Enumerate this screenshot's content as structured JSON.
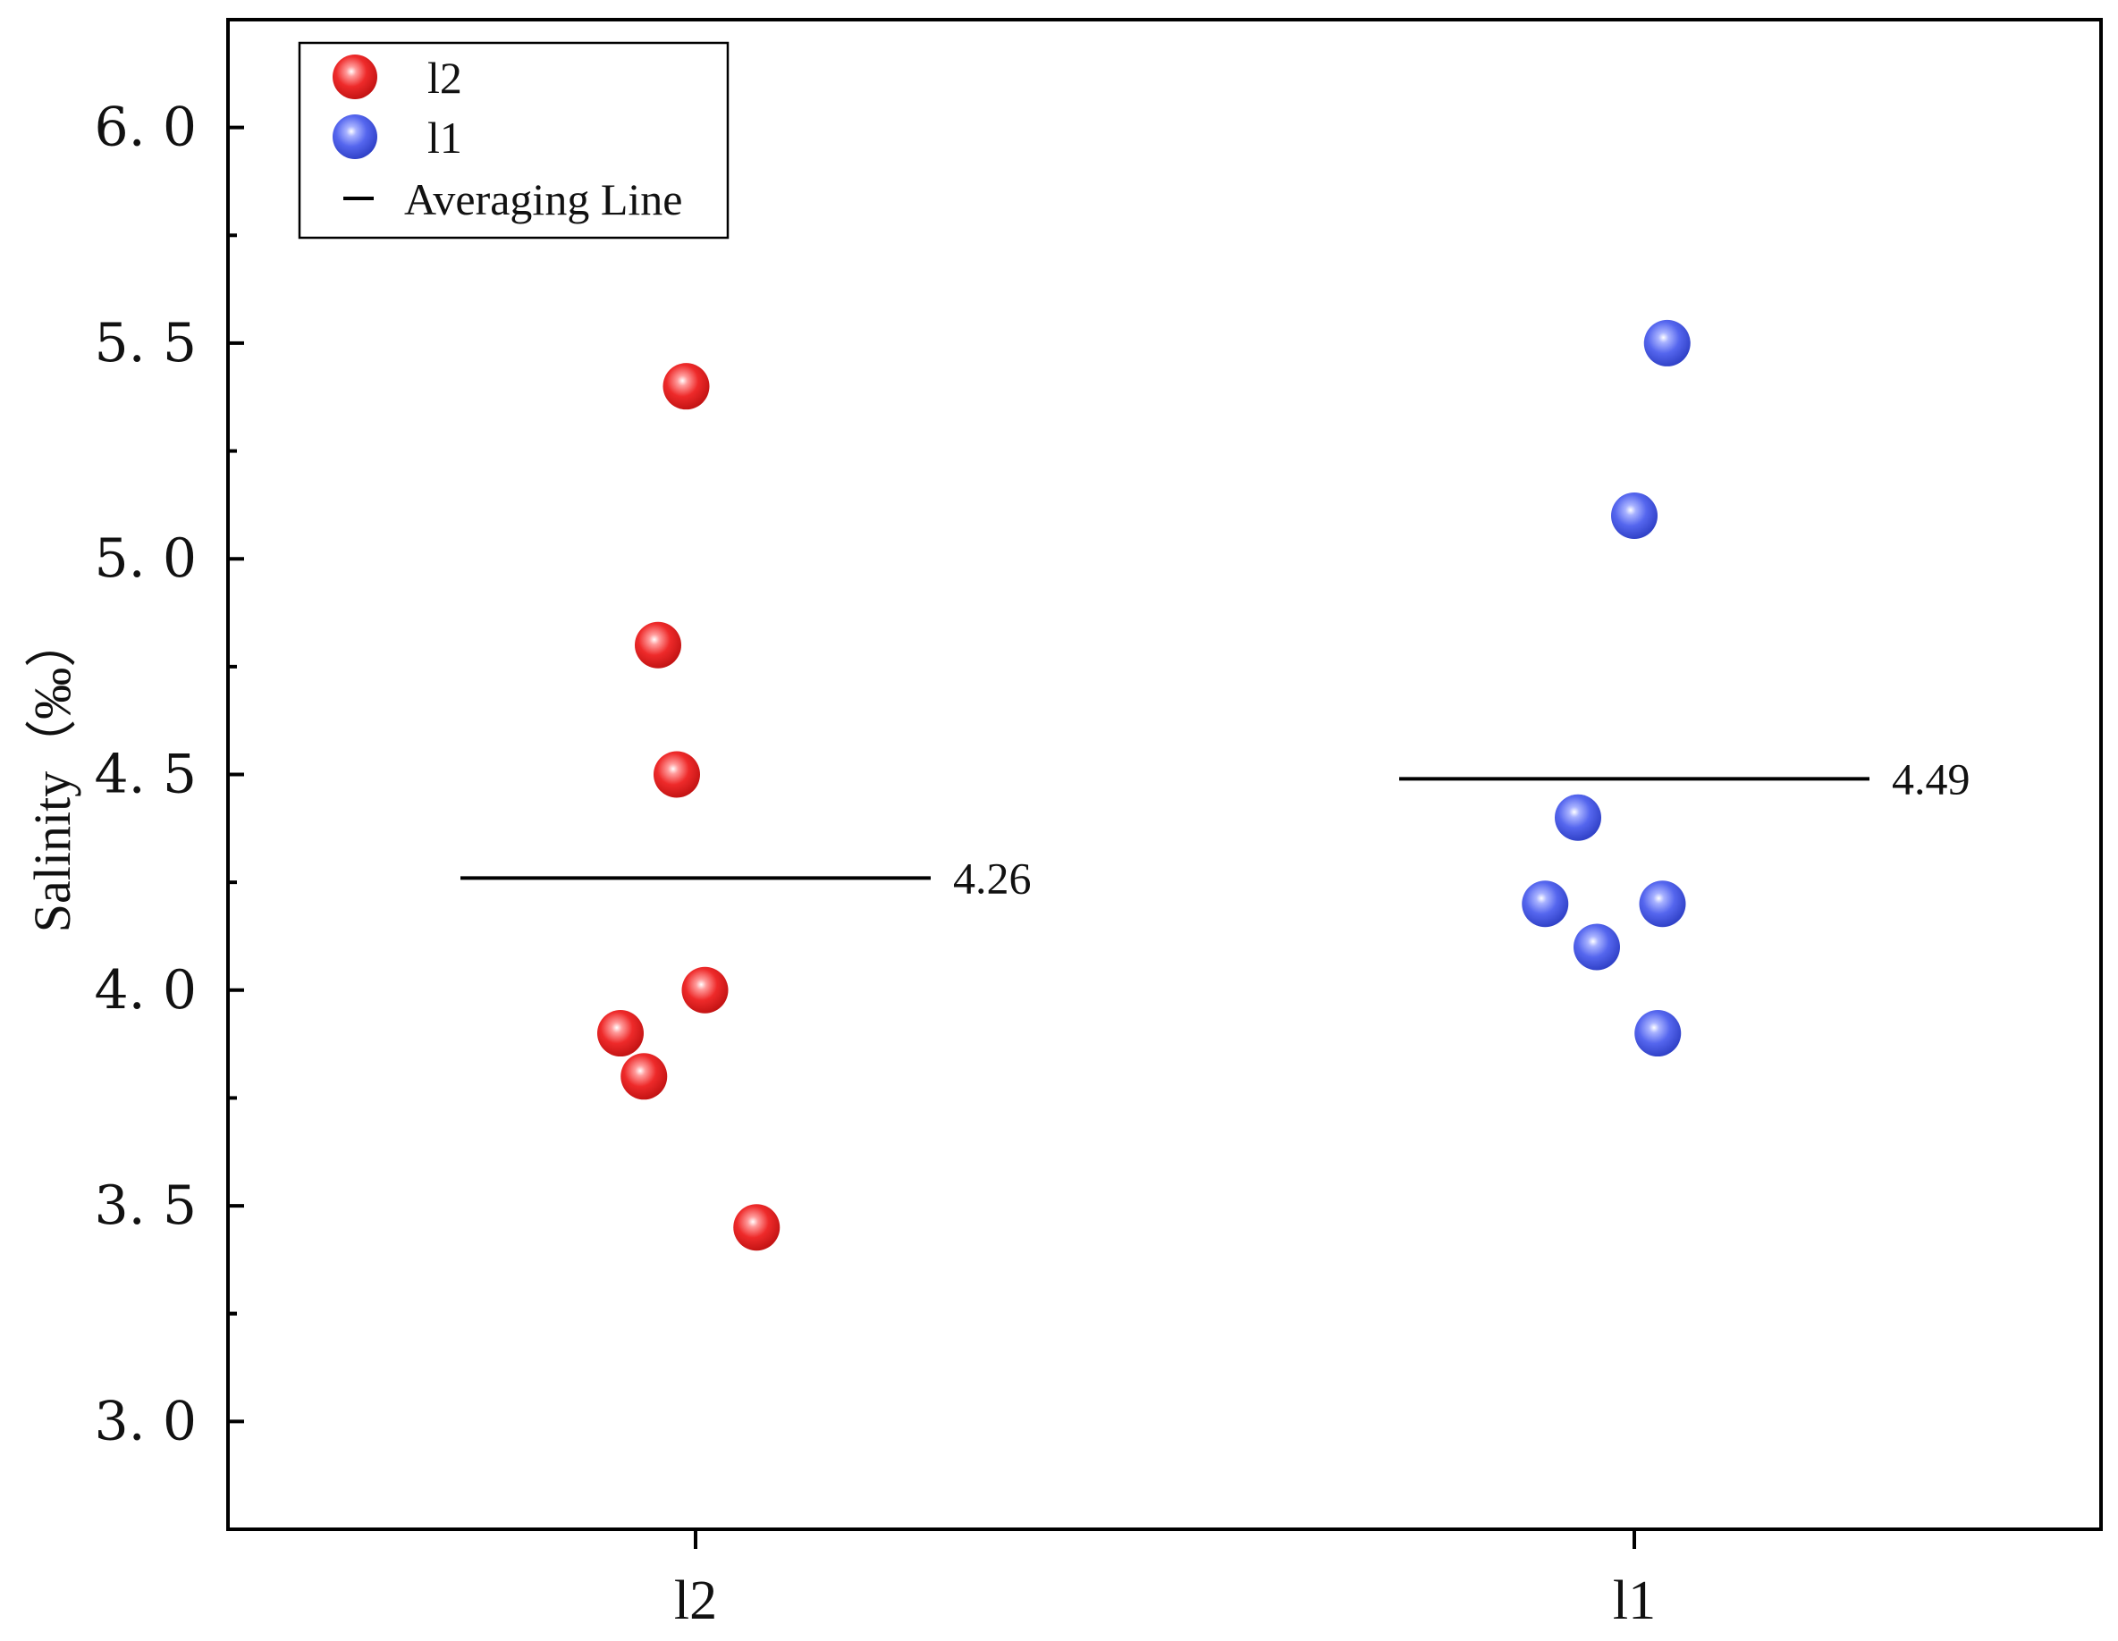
{
  "chart_data": {
    "type": "scatter",
    "title": "",
    "xlabel": "",
    "ylabel": "Salinity（‰）",
    "ylim": [
      2.75,
      6.25
    ],
    "y_ticks": [
      "3.0",
      "3.5",
      "4.0",
      "4.5",
      "5.0",
      "5.5",
      "6.0"
    ],
    "categories": [
      "l2",
      "l1"
    ],
    "series": [
      {
        "name": "l2",
        "color": "#ee2a2a",
        "category": "l2",
        "points": [
          {
            "x": -0.01,
            "y": 5.4
          },
          {
            "x": -0.04,
            "y": 4.8
          },
          {
            "x": -0.02,
            "y": 4.5
          },
          {
            "x": 0.01,
            "y": 4.0
          },
          {
            "x": -0.08,
            "y": 3.9
          },
          {
            "x": -0.055,
            "y": 3.8
          },
          {
            "x": 0.065,
            "y": 3.45
          }
        ]
      },
      {
        "name": "l1",
        "color": "#4e5fe0",
        "category": "l1",
        "points": [
          {
            "x": 0.035,
            "y": 5.5
          },
          {
            "x": 0.0,
            "y": 5.1
          },
          {
            "x": -0.06,
            "y": 4.4
          },
          {
            "x": -0.095,
            "y": 4.2
          },
          {
            "x": 0.03,
            "y": 4.2
          },
          {
            "x": -0.04,
            "y": 4.1
          },
          {
            "x": 0.025,
            "y": 3.9
          }
        ]
      }
    ],
    "averages": [
      {
        "category": "l2",
        "value": 4.26,
        "label": "4.26"
      },
      {
        "category": "l1",
        "value": 4.49,
        "label": "4.49"
      }
    ],
    "legend": {
      "position": "top-left",
      "entries": [
        "l2",
        "l1",
        "Averaging Line"
      ]
    },
    "grid": false
  }
}
